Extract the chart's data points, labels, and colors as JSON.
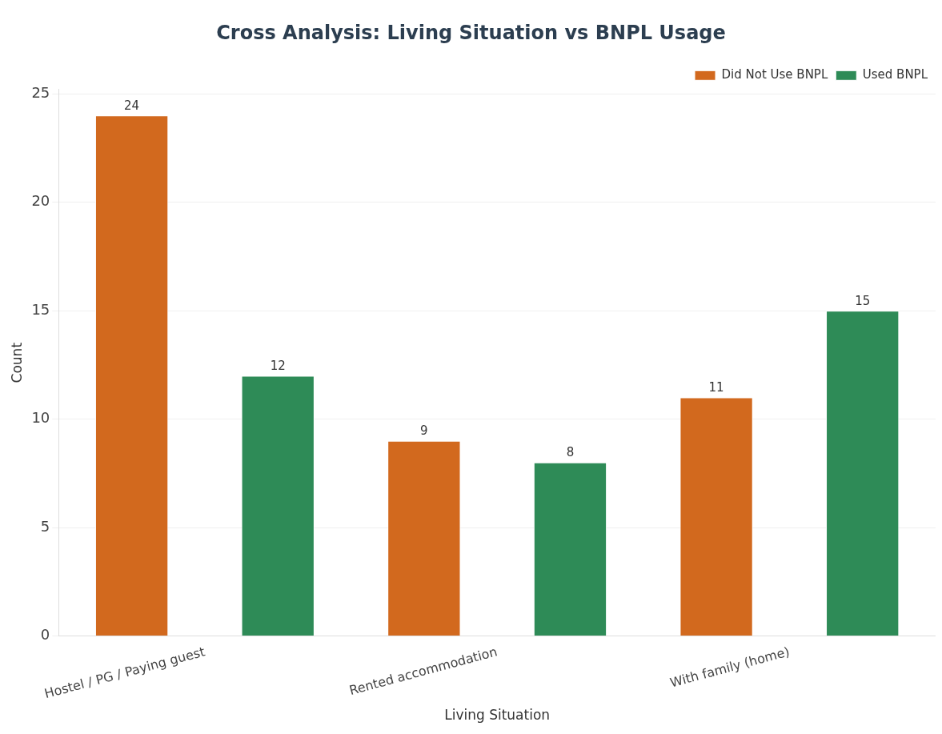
{
  "chart_data": {
    "type": "bar",
    "title": "Cross Analysis: Living Situation vs BNPL Usage",
    "xlabel": "Living Situation",
    "ylabel": "Count",
    "categories": [
      "Hostel / PG / Paying guest",
      "Rented accommodation",
      "With family (home)"
    ],
    "series": [
      {
        "name": "Did Not Use BNPL",
        "color": "#d2691e",
        "values": [
          24,
          9,
          11
        ]
      },
      {
        "name": "Used BNPL",
        "color": "#2e8b57",
        "values": [
          12,
          8,
          15
        ]
      }
    ],
    "ylim": [
      0,
      25.2
    ],
    "yticks": [
      0,
      5,
      10,
      15,
      20,
      25
    ],
    "grid": "y",
    "legend": "top right",
    "data_labels": true
  }
}
